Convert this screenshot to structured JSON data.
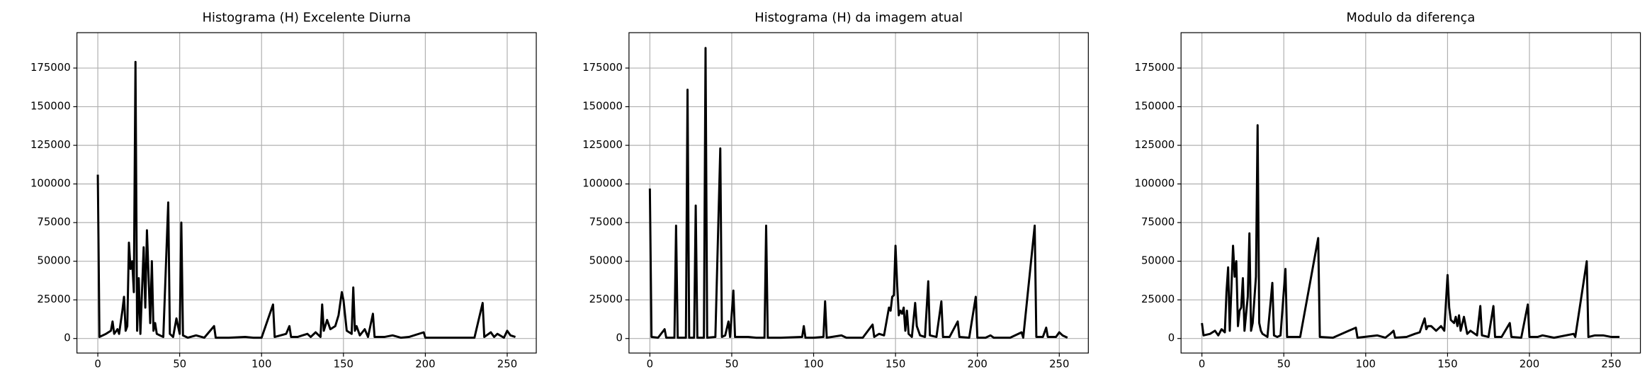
{
  "chart_data": [
    {
      "type": "line",
      "title": "Histograma (H) Excelente Diurna",
      "color": "#000000",
      "grid": true,
      "xlim": [
        -12.75,
        267.75
      ],
      "ylim": [
        -9400,
        197900
      ],
      "xticks": [
        0,
        50,
        100,
        150,
        200,
        250
      ],
      "yticks": [
        0,
        25000,
        50000,
        75000,
        100000,
        125000,
        150000,
        175000
      ],
      "x": [
        0,
        1,
        5,
        8,
        9,
        10,
        12,
        13,
        15,
        16,
        17,
        18,
        19,
        20,
        21,
        22,
        23,
        24,
        25,
        26,
        28,
        29,
        30,
        31,
        32,
        33,
        34,
        35,
        36,
        38,
        40,
        43,
        44,
        46,
        48,
        50,
        51,
        52,
        55,
        60,
        65,
        71,
        72,
        80,
        90,
        95,
        100,
        107,
        108,
        115,
        117,
        118,
        122,
        125,
        128,
        130,
        133,
        136,
        137,
        138,
        140,
        142,
        145,
        147,
        149,
        150,
        152,
        155,
        156,
        157,
        158,
        160,
        163,
        165,
        168,
        169,
        175,
        180,
        185,
        190,
        199,
        200,
        210,
        220,
        230,
        235,
        236,
        240,
        242,
        244,
        248,
        250,
        252,
        255
      ],
      "values": [
        106000,
        1000,
        3000,
        5000,
        11000,
        3000,
        6000,
        3000,
        18000,
        27000,
        5000,
        8000,
        62000,
        45000,
        50000,
        30000,
        179000,
        5000,
        39000,
        3000,
        59000,
        20000,
        70000,
        40000,
        10000,
        50000,
        5000,
        10000,
        3000,
        2000,
        1000,
        88000,
        3000,
        1000,
        13000,
        3000,
        75000,
        2000,
        500,
        2000,
        500,
        8000,
        500,
        500,
        1000,
        500,
        500,
        22000,
        1000,
        3000,
        8000,
        1000,
        1000,
        2000,
        3000,
        1000,
        4000,
        1000,
        22000,
        5000,
        12000,
        6000,
        8000,
        15000,
        30000,
        25000,
        5000,
        3000,
        33000,
        5000,
        8000,
        2000,
        6000,
        1000,
        16000,
        1000,
        1000,
        2000,
        500,
        1000,
        4000,
        500,
        500,
        500,
        500,
        23000,
        1000,
        4000,
        1000,
        3000,
        500,
        5000,
        2000,
        1000
      ]
    },
    {
      "type": "line",
      "title": "Histograma (H) da imagem atual",
      "color": "#000000",
      "grid": true,
      "xlim": [
        -12.75,
        267.75
      ],
      "ylim": [
        -9400,
        197900
      ],
      "xticks": [
        0,
        50,
        100,
        150,
        200,
        250
      ],
      "yticks": [
        0,
        25000,
        50000,
        75000,
        100000,
        125000,
        150000,
        175000
      ],
      "x": [
        0,
        1,
        5,
        9,
        10,
        15,
        16,
        17,
        22,
        23,
        24,
        27,
        28,
        29,
        33,
        34,
        35,
        40,
        43,
        44,
        46,
        48,
        49,
        51,
        52,
        60,
        65,
        70,
        71,
        72,
        80,
        93,
        94,
        95,
        100,
        106,
        107,
        108,
        117,
        120,
        130,
        136,
        137,
        140,
        143,
        146,
        147,
        148,
        149,
        150,
        151,
        152,
        153,
        154,
        155,
        156,
        157,
        158,
        160,
        162,
        163,
        165,
        168,
        170,
        171,
        175,
        178,
        179,
        183,
        188,
        189,
        195,
        199,
        200,
        205,
        208,
        210,
        220,
        227,
        228,
        235,
        236,
        240,
        242,
        243,
        248,
        250,
        252,
        255
      ],
      "values": [
        97000,
        1000,
        500,
        6000,
        500,
        500,
        73000,
        500,
        500,
        161000,
        500,
        500,
        86000,
        500,
        500,
        188000,
        500,
        1000,
        123000,
        1000,
        2000,
        11000,
        1000,
        31000,
        1000,
        1000,
        500,
        500,
        73000,
        500,
        500,
        1000,
        8000,
        500,
        500,
        1000,
        24000,
        500,
        2000,
        500,
        500,
        9000,
        1000,
        3000,
        2000,
        20000,
        18000,
        27000,
        28000,
        60000,
        35000,
        15000,
        18000,
        16000,
        20000,
        5000,
        18000,
        3000,
        1000,
        23000,
        8000,
        2000,
        1000,
        37000,
        2000,
        1000,
        24000,
        1000,
        1000,
        11000,
        1000,
        500,
        27000,
        500,
        500,
        2000,
        500,
        500,
        4000,
        500,
        73000,
        1000,
        1000,
        7000,
        1000,
        1000,
        4000,
        2000,
        500
      ]
    },
    {
      "type": "line",
      "title": "Modulo da diferença",
      "color": "#000000",
      "grid": true,
      "xlim": [
        -12.75,
        267.75
      ],
      "ylim": [
        -9400,
        197900
      ],
      "xticks": [
        0,
        50,
        100,
        150,
        200,
        250
      ],
      "yticks": [
        0,
        25000,
        50000,
        75000,
        100000,
        125000,
        150000,
        175000
      ],
      "x": [
        0,
        1,
        5,
        8,
        10,
        12,
        14,
        15,
        16,
        17,
        19,
        20,
        21,
        22,
        23,
        24,
        25,
        26,
        28,
        29,
        30,
        31,
        33,
        34,
        35,
        36,
        37,
        40,
        43,
        44,
        46,
        48,
        51,
        52,
        60,
        71,
        72,
        80,
        94,
        95,
        107,
        112,
        115,
        117,
        118,
        125,
        130,
        133,
        136,
        137,
        138,
        140,
        143,
        146,
        148,
        150,
        151,
        152,
        154,
        155,
        156,
        157,
        158,
        160,
        162,
        164,
        168,
        170,
        171,
        175,
        178,
        179,
        183,
        188,
        189,
        195,
        199,
        200,
        205,
        208,
        215,
        227,
        228,
        235,
        236,
        240,
        242,
        245,
        250,
        255
      ],
      "values": [
        10000,
        2000,
        3000,
        5000,
        2000,
        6000,
        4000,
        30000,
        46000,
        5000,
        60000,
        40000,
        50000,
        8000,
        18000,
        20000,
        39000,
        5000,
        27000,
        68000,
        5000,
        10000,
        40000,
        138000,
        10000,
        5000,
        3000,
        1000,
        36000,
        2000,
        1000,
        2000,
        45000,
        1000,
        1000,
        65000,
        1000,
        500,
        7000,
        500,
        2000,
        500,
        3000,
        5000,
        500,
        1000,
        3000,
        4000,
        13000,
        6000,
        8000,
        8000,
        5000,
        8000,
        5000,
        41000,
        20000,
        12000,
        10000,
        14000,
        8000,
        15000,
        5000,
        14000,
        3000,
        5000,
        2000,
        21000,
        2000,
        1000,
        21000,
        1000,
        1000,
        10000,
        1000,
        500,
        22000,
        1000,
        1000,
        2000,
        500,
        3000,
        1000,
        50000,
        1000,
        2000,
        2000,
        2000,
        1000,
        1000
      ]
    }
  ]
}
